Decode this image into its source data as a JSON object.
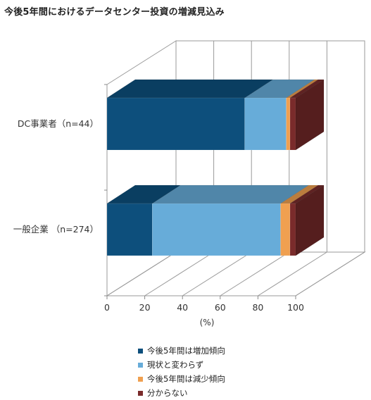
{
  "title": "今後5年間におけるデータセンター投資の増減見込み",
  "chart_data": {
    "type": "bar",
    "orientation": "horizontal",
    "stacked": true,
    "three_d": true,
    "categories": [
      "DC事業者（n=44）",
      "一般企業 （n=274）"
    ],
    "series": [
      {
        "name": "今後5年間は増加傾向",
        "color": "#0d4f7c",
        "values": [
          73,
          24
        ]
      },
      {
        "name": "現状と変わらず",
        "color": "#67acd9",
        "values": [
          22,
          68
        ]
      },
      {
        "name": "今後5年間は減少傾向",
        "color": "#f0a050",
        "values": [
          2,
          5
        ]
      },
      {
        "name": "分からない",
        "color": "#7a2b2b",
        "values": [
          3,
          3
        ]
      }
    ],
    "xlabel": "(%)",
    "xlim": [
      0,
      100
    ],
    "x_ticks": [
      "0",
      "20",
      "40",
      "60",
      "80",
      "100"
    ],
    "legend_position": "bottom",
    "grid": true
  }
}
